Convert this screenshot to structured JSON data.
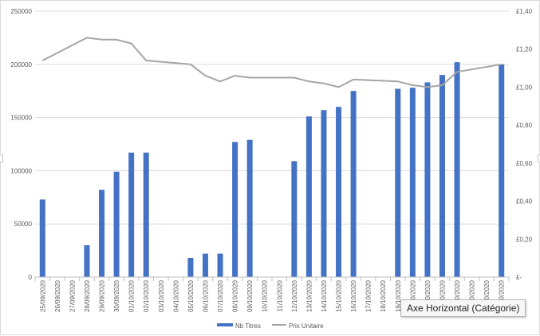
{
  "chart_data": {
    "type": "bar",
    "categories": [
      "25/09/2020",
      "26/09/2020",
      "27/09/2020",
      "28/09/2020",
      "29/09/2020",
      "30/09/2020",
      "01/10/2020",
      "02/10/2020",
      "03/10/2020",
      "04/10/2020",
      "05/10/2020",
      "06/10/2020",
      "07/10/2020",
      "08/10/2020",
      "09/10/2020",
      "10/10/2020",
      "11/10/2020",
      "12/10/2020",
      "13/10/2020",
      "14/10/2020",
      "15/10/2020",
      "16/10/2020",
      "17/10/2020",
      "18/10/2020",
      "19/10/2020",
      "20/10/2020",
      "21/10/2020",
      "22/10/2020",
      "23/10/2020",
      "24/10/2020",
      "25/10/2020",
      "26/10/2020"
    ],
    "series": [
      {
        "name": "Nb Titres",
        "type": "bar",
        "axis": "left",
        "color": "#4472c4",
        "values": [
          73000,
          0,
          0,
          30000,
          82000,
          99000,
          117000,
          117000,
          0,
          0,
          18000,
          22000,
          22000,
          127000,
          129000,
          0,
          0,
          109000,
          151000,
          157000,
          160000,
          175000,
          0,
          0,
          177000,
          178000,
          183000,
          190000,
          202000,
          0,
          0,
          200000
        ]
      },
      {
        "name": "Prix Unitaire",
        "type": "line",
        "axis": "right",
        "color": "#a5a5a5",
        "x": [
          "25/09/2020",
          "28/09/2020",
          "29/09/2020",
          "30/09/2020",
          "01/10/2020",
          "02/10/2020",
          "05/10/2020",
          "06/10/2020",
          "07/10/2020",
          "08/10/2020",
          "09/10/2020",
          "12/10/2020",
          "13/10/2020",
          "14/10/2020",
          "15/10/2020",
          "16/10/2020",
          "19/10/2020",
          "20/10/2020",
          "21/10/2020",
          "22/10/2020",
          "23/10/2020",
          "26/10/2020"
        ],
        "values": [
          1.14,
          1.26,
          1.25,
          1.25,
          1.23,
          1.14,
          1.12,
          1.06,
          1.03,
          1.06,
          1.05,
          1.05,
          1.03,
          1.02,
          1.0,
          1.04,
          1.03,
          1.01,
          1.0,
          1.01,
          1.08,
          1.12
        ]
      }
    ],
    "y_left": {
      "ylim": [
        0,
        250000
      ],
      "ticks": [
        0,
        50000,
        100000,
        150000,
        200000,
        250000
      ],
      "tick_labels": [
        "0",
        "50000",
        "100000",
        "150000",
        "200000",
        "250000"
      ]
    },
    "y_right": {
      "ylim": [
        0,
        1.4
      ],
      "ticks": [
        0,
        0.2,
        0.4,
        0.6,
        0.8,
        1.0,
        1.2,
        1.4
      ],
      "tick_labels": [
        "£-",
        "£0,20",
        "£0,40",
        "£0,60",
        "£0,80",
        "£1,00",
        "£1,20",
        "£1,40"
      ]
    },
    "title": "",
    "xlabel": "",
    "grid": true,
    "legend_position": "bottom",
    "legend": [
      {
        "label": "Nb Titres",
        "marker": "bar",
        "color": "#4472c4"
      },
      {
        "label": "Prix Unitaire",
        "marker": "line",
        "color": "#a5a5a5"
      }
    ]
  },
  "tooltip": {
    "text": "Axe Horizontal (Catégorie)"
  }
}
